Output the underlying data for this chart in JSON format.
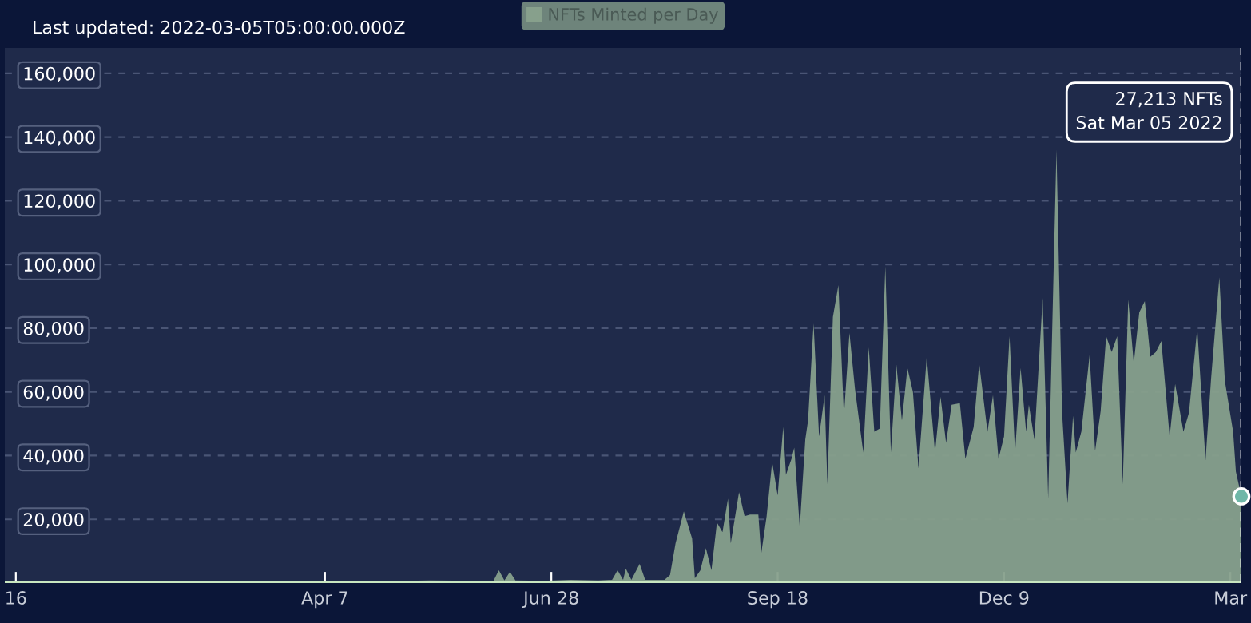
{
  "chart_data": {
    "type": "area",
    "title": "Last updated: 2022-03-05T05:00:00.000Z",
    "xlim": [
      "2020-12-12",
      "2022-03-05"
    ],
    "xticks": [
      {
        "value": "2020-12-16",
        "label": "16"
      },
      {
        "value": "2021-04-07",
        "label": "Apr 7"
      },
      {
        "value": "2021-06-28",
        "label": "Jun 28"
      },
      {
        "value": "2021-09-18",
        "label": "Sep 18"
      },
      {
        "value": "2021-12-09",
        "label": "Dec 9"
      },
      {
        "value": "2022-03-01",
        "label": "Mar"
      }
    ],
    "ylim": [
      0,
      168000
    ],
    "yticks": [
      {
        "value": 20000,
        "label": "20,000"
      },
      {
        "value": 40000,
        "label": "40,000"
      },
      {
        "value": 60000,
        "label": "60,000"
      },
      {
        "value": 80000,
        "label": "80,000"
      },
      {
        "value": 100000,
        "label": "100,000"
      },
      {
        "value": 120000,
        "label": "120,000"
      },
      {
        "value": 140000,
        "label": "140,000"
      },
      {
        "value": 160000,
        "label": "160,000"
      }
    ],
    "grid": "y",
    "legend": "top",
    "tick_labels": "xy",
    "x": [
      "2020-12-15",
      "2021-01-15",
      "2021-02-15",
      "2021-03-15",
      "2021-04-15",
      "2021-05-15",
      "2021-06-01",
      "2021-06-07",
      "2021-06-09",
      "2021-06-11",
      "2021-06-13",
      "2021-06-15",
      "2021-06-25",
      "2021-07-05",
      "2021-07-15",
      "2021-07-20",
      "2021-07-22",
      "2021-07-24",
      "2021-07-25",
      "2021-07-27",
      "2021-07-30",
      "2021-08-01",
      "2021-08-08",
      "2021-08-10",
      "2021-08-12",
      "2021-08-15",
      "2021-08-18",
      "2021-08-19",
      "2021-08-21",
      "2021-08-23",
      "2021-08-25",
      "2021-08-27",
      "2021-08-29",
      "2021-08-31",
      "2021-09-01",
      "2021-09-04",
      "2021-09-06",
      "2021-09-08",
      "2021-09-11",
      "2021-09-12",
      "2021-09-14",
      "2021-09-16",
      "2021-09-18",
      "2021-09-20",
      "2021-09-21",
      "2021-09-23",
      "2021-09-24",
      "2021-09-26",
      "2021-09-28",
      "2021-09-29",
      "2021-10-01",
      "2021-10-03",
      "2021-10-05",
      "2021-10-06",
      "2021-10-08",
      "2021-10-10",
      "2021-10-12",
      "2021-10-14",
      "2021-10-16",
      "2021-10-19",
      "2021-10-21",
      "2021-10-23",
      "2021-10-25",
      "2021-10-27",
      "2021-10-29",
      "2021-10-31",
      "2021-11-02",
      "2021-11-04",
      "2021-11-06",
      "2021-11-08",
      "2021-11-11",
      "2021-11-14",
      "2021-11-16",
      "2021-11-18",
      "2021-11-20",
      "2021-11-23",
      "2021-11-25",
      "2021-11-28",
      "2021-11-30",
      "2021-12-03",
      "2021-12-05",
      "2021-12-07",
      "2021-12-09",
      "2021-12-11",
      "2021-12-13",
      "2021-12-15",
      "2021-12-17",
      "2021-12-18",
      "2021-12-20",
      "2021-12-23",
      "2021-12-25",
      "2021-12-28",
      "2021-12-30",
      "2022-01-01",
      "2022-01-03",
      "2022-01-04",
      "2022-01-06",
      "2022-01-09",
      "2022-01-11",
      "2022-01-13",
      "2022-01-15",
      "2022-01-17",
      "2022-01-19",
      "2022-01-21",
      "2022-01-23",
      "2022-01-25",
      "2022-01-27",
      "2022-01-29",
      "2022-01-31",
      "2022-02-02",
      "2022-02-04",
      "2022-02-07",
      "2022-02-09",
      "2022-02-12",
      "2022-02-14",
      "2022-02-16",
      "2022-02-17",
      "2022-02-20",
      "2022-02-22",
      "2022-02-25",
      "2022-02-27",
      "2022-03-02",
      "2022-03-03",
      "2022-03-05"
    ],
    "series": [
      {
        "name": "NFTs Minted per Day",
        "color": "#87a08c",
        "values": [
          0,
          100,
          100,
          200,
          500,
          800,
          700,
          600,
          4000,
          800,
          3500,
          800,
          700,
          1000,
          800,
          1000,
          4000,
          1000,
          4500,
          1000,
          6000,
          1000,
          1000,
          2500,
          12500,
          22500,
          14000,
          1500,
          4000,
          11000,
          4000,
          19000,
          16000,
          26500,
          12500,
          28500,
          21000,
          21500,
          21500,
          9000,
          21000,
          38000,
          27500,
          49000,
          34000,
          39000,
          42500,
          17500,
          45000,
          51000,
          81500,
          46000,
          59000,
          31000,
          83500,
          93500,
          52500,
          78500,
          61000,
          41000,
          74000,
          47500,
          48500,
          99500,
          41000,
          68500,
          51000,
          67500,
          60000,
          36000,
          71000,
          41000,
          58500,
          44000,
          56000,
          56500,
          39000,
          49000,
          69000,
          47500,
          59000,
          39000,
          46000,
          77500,
          41000,
          67500,
          47500,
          56000,
          45000,
          89500,
          26500,
          136000,
          54000,
          25000,
          52500,
          41000,
          47500,
          71500,
          41500,
          54000,
          77500,
          72500,
          77500,
          31000,
          89000,
          69000,
          85000,
          88500,
          71000,
          72500,
          76000,
          46000,
          62500,
          47500,
          53500,
          71000,
          80000,
          38500,
          64000,
          96000,
          63500,
          47500,
          35000,
          27213
        ]
      }
    ],
    "ref_lines": [
      {
        "axis": "x",
        "value": "2022-03-05",
        "color": "#ffffff",
        "line_style": "dashed"
      }
    ],
    "annotations": [
      "27,213 NFTs\nSat Mar 05 2022"
    ]
  }
}
